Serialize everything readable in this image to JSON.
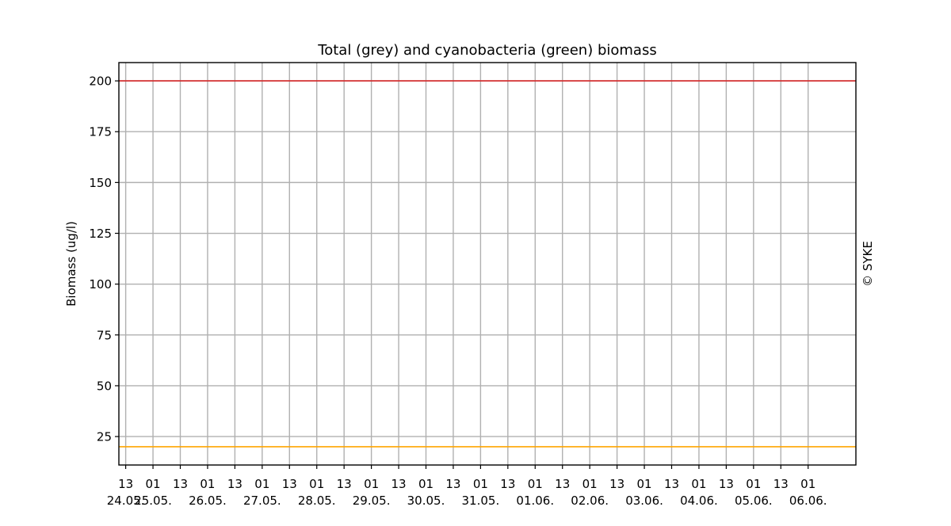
{
  "chart_data": {
    "type": "line",
    "title": "Total (grey) and cyanobacteria (green) biomass",
    "xlabel": "",
    "ylabel": "Biomass (ug/l)",
    "credit": "© SYKE",
    "xlim": [
      "2023-05-24T10:00",
      "2023-06-06T22:00"
    ],
    "ylim": [
      11,
      209
    ],
    "yticks": [
      25,
      50,
      75,
      100,
      125,
      150,
      175,
      200
    ],
    "grid": true,
    "x_ticks": [
      {
        "t": "2023-05-24T13:00",
        "hour": "13",
        "date": "24.05."
      },
      {
        "t": "2023-05-25T01:00",
        "hour": "01",
        "date": "25.05."
      },
      {
        "t": "2023-05-25T13:00",
        "hour": "13",
        "date": ""
      },
      {
        "t": "2023-05-26T01:00",
        "hour": "01",
        "date": "26.05."
      },
      {
        "t": "2023-05-26T13:00",
        "hour": "13",
        "date": ""
      },
      {
        "t": "2023-05-27T01:00",
        "hour": "01",
        "date": "27.05."
      },
      {
        "t": "2023-05-27T13:00",
        "hour": "13",
        "date": ""
      },
      {
        "t": "2023-05-28T01:00",
        "hour": "01",
        "date": "28.05."
      },
      {
        "t": "2023-05-28T13:00",
        "hour": "13",
        "date": ""
      },
      {
        "t": "2023-05-29T01:00",
        "hour": "01",
        "date": "29.05."
      },
      {
        "t": "2023-05-29T13:00",
        "hour": "13",
        "date": ""
      },
      {
        "t": "2023-05-30T01:00",
        "hour": "01",
        "date": "30.05."
      },
      {
        "t": "2023-05-30T13:00",
        "hour": "13",
        "date": ""
      },
      {
        "t": "2023-05-31T01:00",
        "hour": "01",
        "date": "31.05."
      },
      {
        "t": "2023-05-31T13:00",
        "hour": "13",
        "date": ""
      },
      {
        "t": "2023-06-01T01:00",
        "hour": "01",
        "date": "01.06."
      },
      {
        "t": "2023-06-01T13:00",
        "hour": "13",
        "date": ""
      },
      {
        "t": "2023-06-02T01:00",
        "hour": "01",
        "date": "02.06."
      },
      {
        "t": "2023-06-02T13:00",
        "hour": "13",
        "date": ""
      },
      {
        "t": "2023-06-03T01:00",
        "hour": "01",
        "date": "03.06."
      },
      {
        "t": "2023-06-03T13:00",
        "hour": "13",
        "date": ""
      },
      {
        "t": "2023-06-04T01:00",
        "hour": "01",
        "date": "04.06."
      },
      {
        "t": "2023-06-04T13:00",
        "hour": "13",
        "date": ""
      },
      {
        "t": "2023-06-05T01:00",
        "hour": "01",
        "date": "05.06."
      },
      {
        "t": "2023-06-05T13:00",
        "hour": "13",
        "date": ""
      },
      {
        "t": "2023-06-06T01:00",
        "hour": "01",
        "date": "06.06."
      }
    ],
    "series": [
      {
        "color": "#d62728",
        "x": [
          "2023-05-24T10:00",
          "2023-06-06T22:00"
        ],
        "y": [
          200,
          200
        ]
      },
      {
        "color": "#ffa500",
        "x": [
          "2023-05-24T10:00",
          "2023-06-06T22:00"
        ],
        "y": [
          20,
          20
        ]
      }
    ]
  }
}
